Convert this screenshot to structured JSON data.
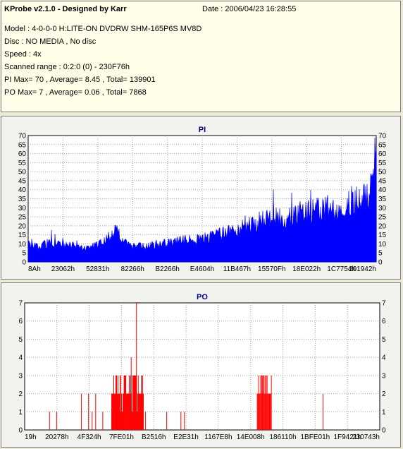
{
  "header": {
    "title": "KProbe v2.1.0 - Designed by Karr",
    "date": "Date : 2006/04/23 16:28:55",
    "lines": [
      "Model : 4-0-0-0 H:LITE-ON DVDRW SHM-165P6S MV8D",
      "Disc : NO MEDIA , No disc",
      "Speed : 4x",
      "Scanned range : 0:2:0 (0) - 230F76h",
      "PI Max= 70 , Average= 8.45 , Total= 139901",
      "PO Max= 7 , Average= 0.06 , Total= 7868"
    ]
  },
  "colors": {
    "pi": "#0000ff",
    "po": "#ff0000",
    "plot_bg": "#ffffff",
    "grid": "#a0a0a0"
  },
  "chart_data": [
    {
      "type": "area",
      "title": "PI",
      "ylim": [
        0,
        70
      ],
      "yticks": [
        0,
        5,
        10,
        15,
        20,
        25,
        30,
        35,
        40,
        45,
        50,
        55,
        60,
        65,
        70
      ],
      "xtick_labels": [
        "8Ah",
        "23062h",
        "52831h",
        "82266h",
        "B2266h",
        "E4604h",
        "11B467h",
        "15570Fh",
        "18E022h",
        "1C7754h",
        "201942h"
      ],
      "grid": true,
      "profile": [
        [
          0,
          9
        ],
        [
          0.03,
          8
        ],
        [
          0.06,
          10
        ],
        [
          0.1,
          9
        ],
        [
          0.14,
          8
        ],
        [
          0.17,
          7
        ],
        [
          0.2,
          9
        ],
        [
          0.23,
          13
        ],
        [
          0.25,
          16
        ],
        [
          0.27,
          12
        ],
        [
          0.29,
          8
        ],
        [
          0.33,
          8
        ],
        [
          0.37,
          9
        ],
        [
          0.41,
          10
        ],
        [
          0.45,
          11
        ],
        [
          0.5,
          12
        ],
        [
          0.55,
          14
        ],
        [
          0.6,
          17
        ],
        [
          0.65,
          20
        ],
        [
          0.7,
          22
        ],
        [
          0.75,
          24
        ],
        [
          0.8,
          26
        ],
        [
          0.85,
          27
        ],
        [
          0.9,
          29
        ],
        [
          0.93,
          31
        ],
        [
          0.96,
          33
        ],
        [
          0.98,
          36
        ],
        [
          0.99,
          45
        ],
        [
          1.0,
          55
        ]
      ],
      "max": 70
    },
    {
      "type": "bar",
      "title": "PO",
      "ylim": [
        0,
        7
      ],
      "yticks": [
        0,
        1,
        2,
        3,
        4,
        5,
        6,
        7
      ],
      "xtick_labels": [
        "19h",
        "20278h",
        "4F324h",
        "7FE01h",
        "B2516h",
        "E2E31h",
        "1167E8h",
        "14E008h",
        "186110h",
        "1BFE01h",
        "1F9421h",
        "230743h"
      ],
      "grid": true,
      "points": [
        [
          0.07,
          1
        ],
        [
          0.09,
          1
        ],
        [
          0.16,
          2
        ],
        [
          0.18,
          2
        ],
        [
          0.19,
          1
        ],
        [
          0.2,
          2
        ],
        [
          0.22,
          1
        ],
        [
          0.25,
          1
        ],
        [
          0.26,
          2
        ],
        [
          0.27,
          3
        ],
        [
          0.28,
          3
        ],
        [
          0.29,
          2
        ],
        [
          0.3,
          4
        ],
        [
          0.31,
          3
        ],
        [
          0.315,
          7
        ],
        [
          0.32,
          3
        ],
        [
          0.33,
          2
        ],
        [
          0.34,
          1
        ],
        [
          0.4,
          1
        ],
        [
          0.44,
          1
        ],
        [
          0.45,
          1
        ],
        [
          0.66,
          2
        ],
        [
          0.67,
          3
        ],
        [
          0.68,
          3
        ],
        [
          0.69,
          2
        ],
        [
          0.84,
          2
        ]
      ],
      "clusters": [
        [
          0.245,
          0.335,
          2.2
        ],
        [
          0.655,
          0.695,
          2.4
        ]
      ]
    }
  ]
}
